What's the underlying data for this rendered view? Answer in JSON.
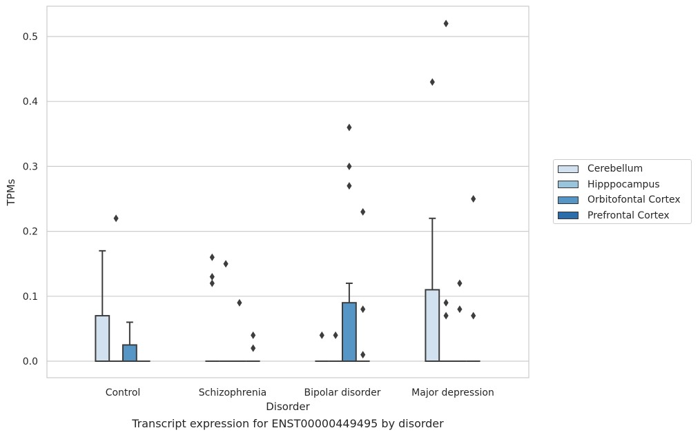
{
  "chart_data": {
    "type": "box",
    "caption": "Transcript expression for ENST00000449495 by disorder",
    "xlabel": "Disorder",
    "ylabel": "TPMs",
    "ylim": [
      -0.025,
      0.55
    ],
    "yticks": [
      0.0,
      0.1,
      0.2,
      0.3,
      0.4,
      0.5
    ],
    "ytick_labels": [
      "0.0",
      "0.1",
      "0.2",
      "0.3",
      "0.4",
      "0.5"
    ],
    "grid": true,
    "legend_position": "right",
    "categories": [
      "Control",
      "Schizophrenia",
      "Bipolar disorder",
      "Major depression"
    ],
    "series": [
      {
        "name": "Cerebellum",
        "color": "#d1e1f0",
        "boxes": [
          {
            "q1": 0,
            "median": 0,
            "q3": 0.07,
            "whisker_low": 0,
            "whisker_high": 0.17,
            "outliers": []
          },
          {
            "q1": 0,
            "median": 0,
            "q3": 0,
            "whisker_low": 0,
            "whisker_high": 0,
            "outliers": [
              0.16,
              0.13,
              0.12
            ]
          },
          {
            "q1": 0,
            "median": 0,
            "q3": 0,
            "whisker_low": 0,
            "whisker_high": 0,
            "outliers": [
              0.04
            ]
          },
          {
            "q1": 0,
            "median": 0,
            "q3": 0.11,
            "whisker_low": 0,
            "whisker_high": 0.22,
            "outliers": [
              0.43
            ]
          }
        ]
      },
      {
        "name": "Hipppocampus",
        "color": "#9ac3dc",
        "boxes": [
          {
            "q1": 0,
            "median": 0,
            "q3": 0,
            "whisker_low": 0,
            "whisker_high": 0,
            "outliers": [
              0.22
            ]
          },
          {
            "q1": 0,
            "median": 0,
            "q3": 0,
            "whisker_low": 0,
            "whisker_high": 0,
            "outliers": [
              0.15
            ]
          },
          {
            "q1": 0,
            "median": 0,
            "q3": 0,
            "whisker_low": 0,
            "whisker_high": 0,
            "outliers": [
              0.04
            ]
          },
          {
            "q1": 0,
            "median": 0,
            "q3": 0,
            "whisker_low": 0,
            "whisker_high": 0,
            "outliers": [
              0.52,
              0.09,
              0.07
            ]
          }
        ]
      },
      {
        "name": "Orbitofontal Cortex",
        "color": "#5596c6",
        "boxes": [
          {
            "q1": 0,
            "median": 0,
            "q3": 0.025,
            "whisker_low": 0,
            "whisker_high": 0.06,
            "outliers": []
          },
          {
            "q1": 0,
            "median": 0,
            "q3": 0,
            "whisker_low": 0,
            "whisker_high": 0,
            "outliers": [
              0.09
            ]
          },
          {
            "q1": 0,
            "median": 0,
            "q3": 0.09,
            "whisker_low": 0,
            "whisker_high": 0.12,
            "outliers": [
              0.36,
              0.3,
              0.27
            ]
          },
          {
            "q1": 0,
            "median": 0,
            "q3": 0,
            "whisker_low": 0,
            "whisker_high": 0,
            "outliers": [
              0.12,
              0.08
            ]
          }
        ]
      },
      {
        "name": "Prefrontal Cortex",
        "color": "#2b6cab",
        "boxes": [
          {
            "q1": 0,
            "median": 0,
            "q3": 0,
            "whisker_low": 0,
            "whisker_high": 0,
            "outliers": []
          },
          {
            "q1": 0,
            "median": 0,
            "q3": 0,
            "whisker_low": 0,
            "whisker_high": 0,
            "outliers": [
              0.04,
              0.02
            ]
          },
          {
            "q1": 0,
            "median": 0,
            "q3": 0,
            "whisker_low": 0,
            "whisker_high": 0,
            "outliers": [
              0.23,
              0.08,
              0.01
            ]
          },
          {
            "q1": 0,
            "median": 0,
            "q3": 0,
            "whisker_low": 0,
            "whisker_high": 0,
            "outliers": [
              0.25,
              0.07
            ]
          }
        ]
      }
    ]
  }
}
